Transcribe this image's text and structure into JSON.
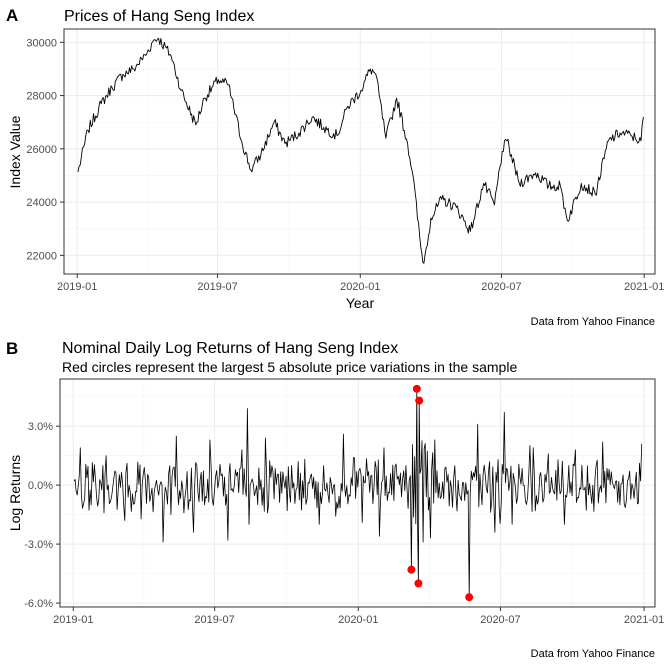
{
  "chart_data": [
    {
      "panel_tag": "A",
      "type": "line",
      "title": "Prices of Hang Seng Index",
      "subtitle": "",
      "xlabel": "Year",
      "ylabel": "Index Value",
      "caption": "Data from Yahoo Finance",
      "x_ticks": [
        "2019-01",
        "2019-07",
        "2020-01",
        "2020-07",
        "2021-01"
      ],
      "y_ticks": [
        "22000",
        "24000",
        "26000",
        "28000",
        "30000"
      ],
      "ylim": [
        21300,
        30500
      ],
      "xlim": [
        "2018-12-15",
        "2021-01-15"
      ],
      "grid": true,
      "series": [
        {
          "x": [
            "2019-01-02",
            "2019-01-15",
            "2019-02-01",
            "2019-02-15",
            "2019-03-01",
            "2019-03-15",
            "2019-04-01",
            "2019-04-10",
            "2019-04-16",
            "2019-05-02",
            "2019-05-15",
            "2019-06-03",
            "2019-06-14",
            "2019-07-02",
            "2019-07-15",
            "2019-08-01",
            "2019-08-13",
            "2019-08-26",
            "2019-09-12",
            "2019-09-26",
            "2019-10-14",
            "2019-10-31",
            "2019-11-15",
            "2019-12-02",
            "2019-12-16",
            "2020-01-02",
            "2020-01-14",
            "2020-01-21",
            "2020-02-03",
            "2020-02-17",
            "2020-03-02",
            "2020-03-09",
            "2020-03-19",
            "2020-03-23",
            "2020-04-01",
            "2020-04-15",
            "2020-05-04",
            "2020-05-22",
            "2020-06-08",
            "2020-06-22",
            "2020-07-02",
            "2020-07-08",
            "2020-07-24",
            "2020-08-14",
            "2020-08-31",
            "2020-09-15",
            "2020-09-24",
            "2020-10-12",
            "2020-10-30",
            "2020-11-16",
            "2020-12-01",
            "2020-12-15",
            "2020-12-28",
            "2020-12-31"
          ],
          "values": [
            25130,
            26700,
            27700,
            28300,
            28800,
            29000,
            29600,
            30100,
            30150,
            29500,
            28200,
            26900,
            27900,
            28600,
            28400,
            26300,
            25200,
            25800,
            27000,
            26200,
            26600,
            27200,
            26800,
            26500,
            27600,
            28200,
            29000,
            28800,
            26400,
            27900,
            26200,
            25000,
            22300,
            21700,
            23400,
            24100,
            23800,
            22900,
            24700,
            23900,
            25900,
            26300,
            24700,
            25100,
            24600,
            24600,
            23300,
            24700,
            24300,
            26300,
            26600,
            26500,
            26300,
            27200
          ]
        }
      ]
    },
    {
      "panel_tag": "B",
      "type": "line",
      "title": "Nominal Daily Log Returns of Hang Seng Index",
      "subtitle": "Red circles represent the largest 5 absolute price variations in the sample",
      "xlabel": "",
      "ylabel": "Log Returns",
      "caption": "Data from Yahoo Finance",
      "x_ticks": [
        "2019-01",
        "2019-07",
        "2020-01",
        "2020-07",
        "2021-01"
      ],
      "y_ticks": [
        "-6.0%",
        "-3.0%",
        "0.0%",
        "3.0%"
      ],
      "ylim": [
        -6.2,
        5.4
      ],
      "xlim": [
        "2018-12-15",
        "2021-01-15"
      ],
      "grid": true,
      "highlight_color": "#ff0000",
      "series": [
        {
          "x": [
            "2019-01-02",
            "2019-01-10",
            "2019-01-24",
            "2019-02-12",
            "2019-03-08",
            "2019-04-02",
            "2019-04-26",
            "2019-05-06",
            "2019-05-13",
            "2019-06-04",
            "2019-06-18",
            "2019-06-25",
            "2019-07-18",
            "2019-08-05",
            "2019-08-12",
            "2019-08-14",
            "2019-09-04",
            "2019-10-02",
            "2019-10-16",
            "2019-11-12",
            "2019-12-13",
            "2020-01-06",
            "2020-01-28",
            "2020-02-03",
            "2020-03-02",
            "2020-03-09",
            "2020-03-16",
            "2020-03-17",
            "2020-03-18",
            "2020-03-19",
            "2020-03-20",
            "2020-03-24",
            "2020-04-08",
            "2020-05-22",
            "2020-06-02",
            "2020-06-24",
            "2020-07-06",
            "2020-07-16",
            "2020-08-12",
            "2020-09-21",
            "2020-10-05",
            "2020-11-09",
            "2020-12-01",
            "2020-12-29"
          ],
          "values": [
            0.2,
            1.9,
            -1.0,
            1.5,
            -1.8,
            0.9,
            -2.9,
            -1.5,
            2.5,
            -2.4,
            -1.0,
            2.3,
            -2.8,
            1.8,
            3.9,
            -2.0,
            2.4,
            -1.3,
            1.2,
            -2.0,
            2.6,
            -1.9,
            -2.6,
            1.9,
            1.0,
            -4.3,
            4.9,
            -2.1,
            -5.0,
            4.3,
            0.6,
            -2.9,
            2.3,
            -5.7,
            3.1,
            -2.4,
            3.7,
            -2.0,
            1.9,
            -2.0,
            1.8,
            2.2,
            -1.0,
            2.1
          ]
        },
        {
          "name": "largest absolute variations",
          "x": [
            "2020-03-09",
            "2020-03-16",
            "2020-03-18",
            "2020-03-19",
            "2020-05-22"
          ],
          "values": [
            -4.3,
            4.9,
            -5.0,
            4.3,
            -5.7
          ]
        }
      ]
    }
  ]
}
